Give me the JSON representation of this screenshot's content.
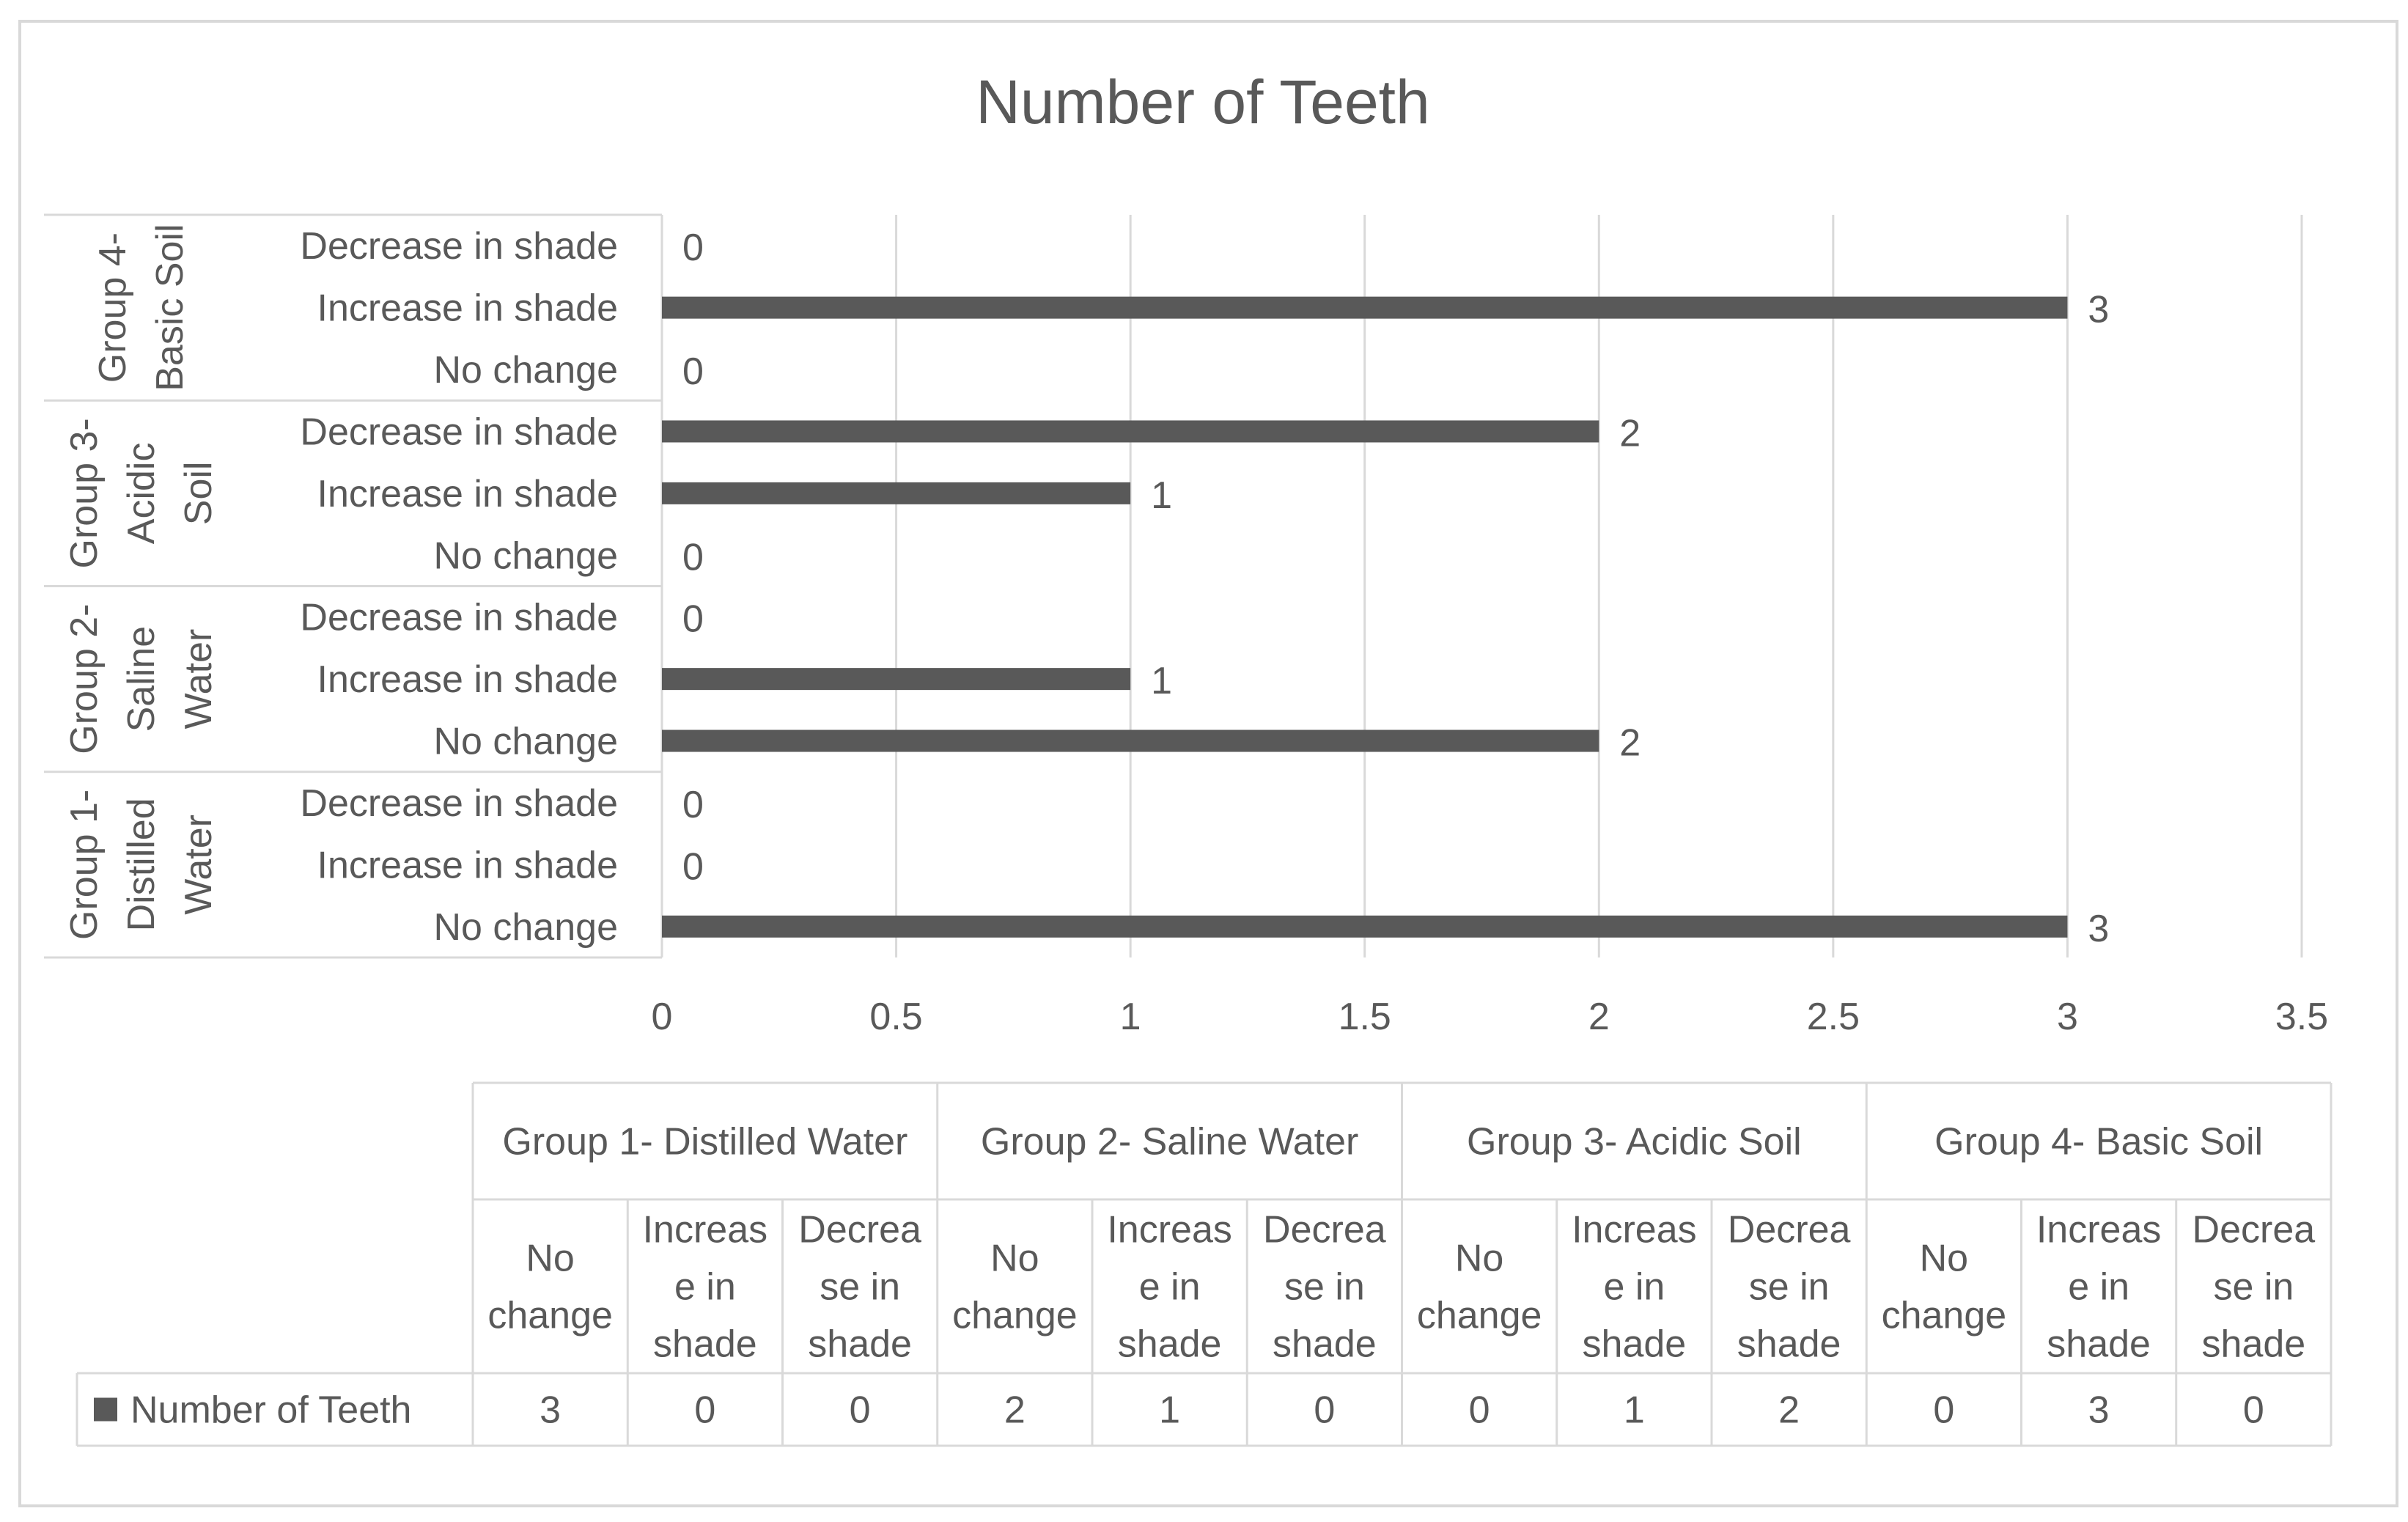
{
  "chart_data": {
    "type": "bar",
    "orientation": "horizontal",
    "title": "Number of Teeth",
    "groups": [
      {
        "label_lines": [
          "Group 1-",
          "Distilled",
          "Water"
        ],
        "table_label": "Group 1- Distilled Water",
        "categories": [
          "No change",
          "Increase in shade",
          "Decrease in shade"
        ],
        "values": [
          3,
          0,
          0
        ]
      },
      {
        "label_lines": [
          "Group 2-",
          "Saline",
          "Water"
        ],
        "table_label": "Group 2- Saline Water",
        "categories": [
          "No change",
          "Increase in shade",
          "Decrease in shade"
        ],
        "values": [
          2,
          1,
          0
        ]
      },
      {
        "label_lines": [
          "Group 3-",
          "Acidic",
          "Soil"
        ],
        "table_label": "Group 3- Acidic Soil",
        "categories": [
          "No change",
          "Increase in shade",
          "Decrease in shade"
        ],
        "values": [
          0,
          1,
          2
        ]
      },
      {
        "label_lines": [
          "Group 4-",
          "Basic Soil"
        ],
        "table_label": "Group 4- Basic Soil",
        "categories": [
          "No change",
          "Increase in shade",
          "Decrease in shade"
        ],
        "values": [
          0,
          3,
          0
        ]
      }
    ],
    "series": [
      {
        "name": "Number of Teeth",
        "values": [
          3,
          0,
          0,
          2,
          1,
          0,
          0,
          1,
          2,
          0,
          3,
          0
        ]
      }
    ],
    "xlim": [
      0,
      3.5
    ],
    "x_ticks": [
      "0",
      "0.5",
      "1",
      "1.5",
      "2",
      "2.5",
      "3",
      "3.5"
    ],
    "grid": "vertical",
    "data_labels": true,
    "data_table": {
      "category_header_lines": [
        [
          "No",
          "change"
        ],
        [
          "Increas",
          "e in",
          "shade"
        ],
        [
          "Decrea",
          "se in",
          "shade"
        ]
      ],
      "legend_key": true
    },
    "colors": {
      "bar": "#595959",
      "grid": "#d9d9d9",
      "text": "#595959",
      "border": "#d9d9d9"
    }
  }
}
